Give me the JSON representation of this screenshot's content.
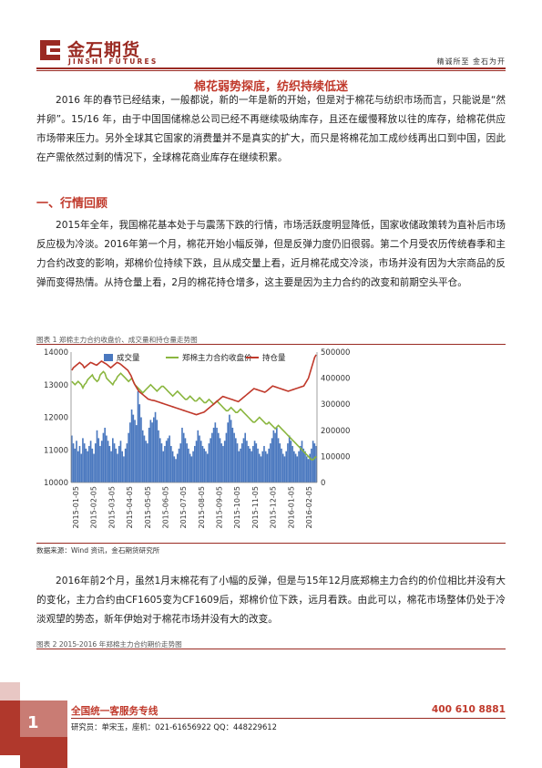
{
  "header": {
    "logo_cn": "金石期货",
    "logo_en": "JINSHI FUTURES",
    "tagline": "精诚所至  金石为开",
    "colors": {
      "brand": "#9a2a22",
      "accent": "#c0392b"
    }
  },
  "title": "棉花弱势探底，纺织持续低迷",
  "paragraphs": {
    "intro": "2016 年的春节已经结束，一般都说，新的一年是新的开始，但是对于棉花与纺织市场而言，只能说是“然并卵”。15/16 年，由于中国国储棉总公司已经不再继续吸纳库存，且还在缓慢释放以往的库存，给棉花供应市场带来压力。另外全球其它国家的消费量并不是真实的扩大，而只是将棉花加工成纱线再出口到中国，因此在产需依然过剩的情况下，全球棉花商业库存在继续积累。",
    "review": "2015年全年，我国棉花基本处于与震荡下跌的行情，市场活跃度明显降低，国家收储政策转为直补后市场反应极为冷淡。2016年第一个月，棉花开始小幅反弹，但是反弹力度仍旧很弱。第二个月受农历传统春季和主力合约改变的影响，郑棉价位持续下跌，且从成交量上看，近月棉花成交冷淡，市场并没有因为大宗商品的反弹而变得热情。从持仓量上看，2月的棉花持仓增多，这主要是因为主力合约的改变和前期空头平仓。",
    "outlook": "2016年前2个月，虽然1月末棉花有了小幅的反弹，但是与15年12月底郑棉主力合约的价位相比并没有大的变化，主力合约由CF1605变为CF1609后，郑棉价位下跌，远月看跌。由此可以，棉花市场整体仍处于冷淡观望的势态，新年伊始对于棉花市场并没有大的改变。"
  },
  "section_head": "一、行情回顾",
  "figure1": {
    "caption": "图表 1 郑棉主力合约收盘价、成交量和持仓量走势图",
    "source": "数据来源：Wind 资讯，金石期货研究所"
  },
  "figure2": {
    "caption": "图表 2 2015-2016 年郑棉主力合约期价走势图"
  },
  "chart_data": {
    "type": "bar",
    "x_tick_labels": [
      "2015-01-05",
      "2015-02-05",
      "2015-03-05",
      "2015-04-05",
      "2015-05-05",
      "2015-06-05",
      "2015-07-05",
      "2015-08-05",
      "2015-09-05",
      "2015-10-05",
      "2015-11-05",
      "2015-12-05",
      "2016-01-05",
      "2016-02-05"
    ],
    "legend": {
      "placement": "top",
      "entries": [
        "成交量",
        "郑棉主力合约收盘价",
        "持仓量"
      ]
    },
    "y_left": {
      "ticks": [
        10000,
        11000,
        12000,
        13000,
        14000
      ],
      "ylim": [
        10000,
        14000
      ]
    },
    "y_right": {
      "ticks": [
        0,
        100000,
        200000,
        300000,
        400000,
        500000
      ],
      "ylim": [
        0,
        500000
      ]
    },
    "grid": false,
    "series": [
      {
        "name": "成交量",
        "kind": "bar",
        "axis": "right",
        "color": "#4a78bf",
        "values": [
          180000,
          150000,
          130000,
          160000,
          120000,
          140000,
          110000,
          170000,
          150000,
          130000,
          120000,
          140000,
          160000,
          130000,
          110000,
          150000,
          200000,
          170000,
          140000,
          160000,
          190000,
          210000,
          180000,
          160000,
          140000,
          120000,
          170000,
          150000,
          130000,
          110000,
          140000,
          160000,
          120000,
          100000,
          130000,
          150000,
          190000,
          230000,
          280000,
          260000,
          240000,
          220000,
          350000,
          300000,
          250000,
          200000,
          180000,
          160000,
          150000,
          210000,
          240000,
          230000,
          250000,
          270000,
          240000,
          200000,
          170000,
          150000,
          120000,
          140000,
          160000,
          170000,
          180000,
          140000,
          120000,
          100000,
          90000,
          110000,
          130000,
          150000,
          210000,
          190000,
          170000,
          150000,
          130000,
          110000,
          100000,
          120000,
          140000,
          160000,
          200000,
          180000,
          160000,
          140000,
          130000,
          120000,
          110000,
          150000,
          170000,
          190000,
          210000,
          230000,
          210000,
          190000,
          170000,
          150000,
          140000,
          160000,
          190000,
          230000,
          260000,
          240000,
          210000,
          190000,
          170000,
          150000,
          120000,
          130000,
          150000,
          170000,
          190000,
          160000,
          140000,
          130000,
          120000,
          140000,
          160000,
          150000,
          130000,
          110000,
          100000,
          120000,
          140000,
          120000,
          110000,
          130000,
          150000,
          170000,
          200000,
          190000,
          210000,
          170000,
          150000,
          130000,
          110000,
          100000,
          120000,
          150000,
          180000,
          160000,
          140000,
          120000,
          110000,
          100000,
          120000,
          140000,
          160000,
          130000,
          120000,
          100000,
          90000,
          110000,
          130000,
          160000,
          150000,
          140000
        ]
      },
      {
        "name": "郑棉主力合约收盘价",
        "kind": "line",
        "axis": "left",
        "color": "#8ab63f",
        "values": [
          13100,
          13050,
          13000,
          13050,
          13100,
          13050,
          13000,
          12900,
          13000,
          13050,
          13150,
          13200,
          13250,
          13300,
          13200,
          13150,
          13100,
          13150,
          13300,
          13350,
          13400,
          13350,
          13200,
          13150,
          13100,
          13050,
          13000,
          13100,
          13150,
          13250,
          13300,
          13350,
          13300,
          13250,
          13200,
          13150,
          13100,
          13150,
          13200,
          13100,
          13000,
          12950,
          12900,
          12850,
          12800,
          12750,
          12800,
          12850,
          12900,
          12950,
          13000,
          12950,
          12900,
          12850,
          12800,
          12850,
          12900,
          12950,
          12950,
          12900,
          12850,
          12800,
          12750,
          12700,
          12650,
          12700,
          12750,
          12800,
          12750,
          12700,
          12650,
          12600,
          12550,
          12550,
          12600,
          12650,
          12600,
          12550,
          12500,
          12500,
          12550,
          12600,
          12550,
          12500,
          12450,
          12450,
          12500,
          12550,
          12500,
          12450,
          12400,
          12450,
          12500,
          12450,
          12400,
          12350,
          12300,
          12250,
          12200,
          12200,
          12250,
          12300,
          12250,
          12200,
          12150,
          12150,
          12200,
          12250,
          12200,
          12150,
          12100,
          12050,
          12000,
          11950,
          11900,
          11850,
          11850,
          11900,
          11950,
          12000,
          11950,
          11900,
          11850,
          11800,
          11800,
          11850,
          11800,
          11750,
          11700,
          11650,
          11700,
          11750,
          11700,
          11650,
          11600,
          11550,
          11500,
          11450,
          11400,
          11350,
          11300,
          11250,
          11200,
          11150,
          11100,
          11050,
          11000,
          10950,
          10900,
          10850,
          10800,
          10750,
          10700,
          10700,
          10750,
          10800
        ]
      },
      {
        "name": "持仓量",
        "kind": "line",
        "axis": "right",
        "color": "#c0392b",
        "values": [
          430000,
          440000,
          445000,
          450000,
          455000,
          460000,
          455000,
          450000,
          440000,
          445000,
          450000,
          455000,
          460000,
          458000,
          455000,
          452000,
          450000,
          455000,
          460000,
          465000,
          462000,
          458000,
          455000,
          450000,
          445000,
          440000,
          445000,
          450000,
          455000,
          460000,
          458000,
          455000,
          450000,
          445000,
          440000,
          435000,
          430000,
          420000,
          410000,
          395000,
          380000,
          370000,
          360000,
          350000,
          345000,
          340000,
          335000,
          330000,
          325000,
          320000,
          318000,
          316000,
          315000,
          314000,
          312000,
          310000,
          308000,
          306000,
          304000,
          302000,
          300000,
          298000,
          296000,
          294000,
          292000,
          290000,
          288000,
          286000,
          284000,
          282000,
          280000,
          278000,
          276000,
          274000,
          272000,
          270000,
          268000,
          266000,
          264000,
          262000,
          260000,
          262000,
          264000,
          266000,
          268000,
          270000,
          275000,
          280000,
          285000,
          290000,
          295000,
          300000,
          305000,
          310000,
          315000,
          320000,
          325000,
          330000,
          328000,
          326000,
          324000,
          322000,
          320000,
          318000,
          316000,
          314000,
          312000,
          310000,
          315000,
          320000,
          325000,
          330000,
          335000,
          340000,
          345000,
          350000,
          355000,
          360000,
          358000,
          356000,
          354000,
          352000,
          350000,
          348000,
          346000,
          350000,
          355000,
          360000,
          365000,
          370000,
          368000,
          366000,
          364000,
          362000,
          360000,
          358000,
          356000,
          354000,
          352000,
          350000,
          352000,
          354000,
          356000,
          358000,
          360000,
          362000,
          364000,
          366000,
          368000,
          370000,
          380000,
          390000,
          400000,
          420000,
          440000,
          460000,
          480000,
          490000
        ]
      }
    ]
  },
  "footer": {
    "page_number": "1",
    "hotline_label": "全国统一客服务专线",
    "hotline_number": "400 610 8881",
    "researcher": "研究员：单宋玉，座机：021-61656922  QQ：448229612"
  }
}
